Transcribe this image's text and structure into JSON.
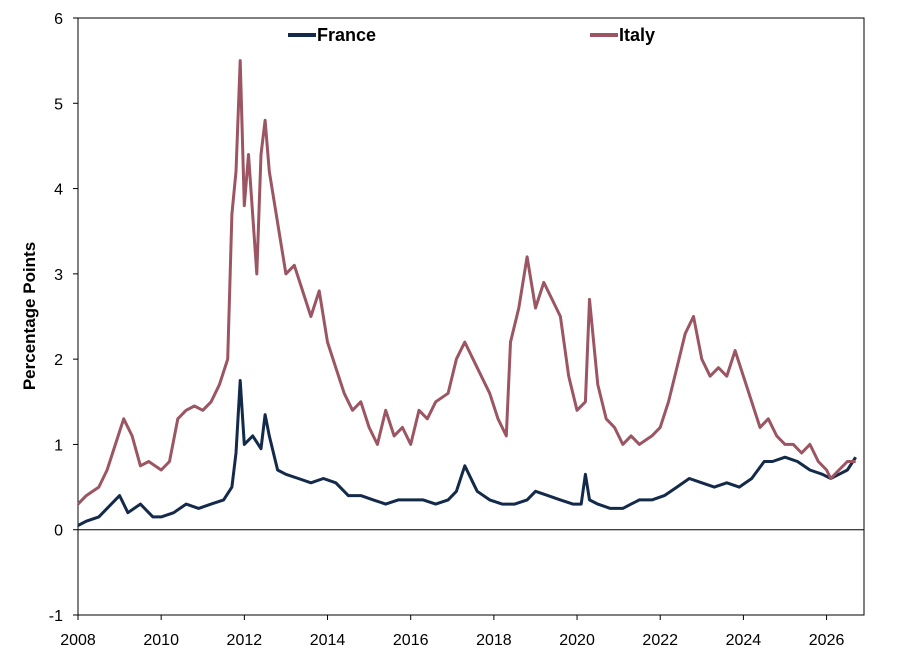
{
  "chart_data": {
    "type": "line",
    "title": "",
    "xlabel": "",
    "ylabel": "Percentage Points",
    "xlim": [
      2008,
      2026.9
    ],
    "ylim": [
      -1,
      6
    ],
    "x_ticks": [
      "2008",
      "2010",
      "2012",
      "2014",
      "2016",
      "2018",
      "2020",
      "2022",
      "2024",
      "2026"
    ],
    "y_ticks": [
      "-1",
      "0",
      "1",
      "2",
      "3",
      "4",
      "5",
      "6"
    ],
    "grid": false,
    "legend_position": "top",
    "series": [
      {
        "name": "France",
        "color": "#142a4a",
        "x": [
          2008.0,
          2008.2,
          2008.5,
          2008.8,
          2009.0,
          2009.2,
          2009.5,
          2009.8,
          2010.0,
          2010.3,
          2010.6,
          2010.9,
          2011.2,
          2011.5,
          2011.7,
          2011.8,
          2011.9,
          2012.0,
          2012.2,
          2012.4,
          2012.5,
          2012.6,
          2012.8,
          2013.0,
          2013.3,
          2013.6,
          2013.9,
          2014.2,
          2014.5,
          2014.8,
          2015.1,
          2015.4,
          2015.7,
          2016.0,
          2016.3,
          2016.6,
          2016.9,
          2017.1,
          2017.3,
          2017.6,
          2017.9,
          2018.2,
          2018.5,
          2018.8,
          2019.0,
          2019.3,
          2019.6,
          2019.9,
          2020.1,
          2020.2,
          2020.3,
          2020.5,
          2020.8,
          2021.1,
          2021.3,
          2021.5,
          2021.8,
          2022.1,
          2022.4,
          2022.7,
          2023.0,
          2023.3,
          2023.6,
          2023.9,
          2024.2,
          2024.5,
          2024.7,
          2025.0,
          2025.3,
          2025.6,
          2025.9,
          2026.1,
          2026.3,
          2026.5,
          2026.7
        ],
        "values": [
          0.05,
          0.1,
          0.15,
          0.3,
          0.4,
          0.2,
          0.3,
          0.15,
          0.15,
          0.2,
          0.3,
          0.25,
          0.3,
          0.35,
          0.5,
          0.9,
          1.75,
          1.0,
          1.1,
          0.95,
          1.35,
          1.1,
          0.7,
          0.65,
          0.6,
          0.55,
          0.6,
          0.55,
          0.4,
          0.4,
          0.35,
          0.3,
          0.35,
          0.35,
          0.35,
          0.3,
          0.35,
          0.45,
          0.75,
          0.45,
          0.35,
          0.3,
          0.3,
          0.35,
          0.45,
          0.4,
          0.35,
          0.3,
          0.3,
          0.65,
          0.35,
          0.3,
          0.25,
          0.25,
          0.3,
          0.35,
          0.35,
          0.4,
          0.5,
          0.6,
          0.55,
          0.5,
          0.55,
          0.5,
          0.6,
          0.8,
          0.8,
          0.85,
          0.8,
          0.7,
          0.65,
          0.6,
          0.65,
          0.7,
          0.85
        ]
      },
      {
        "name": "Italy",
        "color": "#9b5563",
        "x": [
          2008.0,
          2008.2,
          2008.5,
          2008.7,
          2008.9,
          2009.1,
          2009.3,
          2009.5,
          2009.7,
          2010.0,
          2010.2,
          2010.4,
          2010.6,
          2010.8,
          2011.0,
          2011.2,
          2011.4,
          2011.6,
          2011.7,
          2011.8,
          2011.9,
          2012.0,
          2012.1,
          2012.3,
          2012.4,
          2012.5,
          2012.6,
          2012.8,
          2013.0,
          2013.2,
          2013.4,
          2013.6,
          2013.8,
          2014.0,
          2014.2,
          2014.4,
          2014.6,
          2014.8,
          2015.0,
          2015.2,
          2015.4,
          2015.6,
          2015.8,
          2016.0,
          2016.2,
          2016.4,
          2016.6,
          2016.9,
          2017.1,
          2017.3,
          2017.6,
          2017.9,
          2018.1,
          2018.3,
          2018.4,
          2018.6,
          2018.8,
          2019.0,
          2019.2,
          2019.4,
          2019.6,
          2019.8,
          2020.0,
          2020.2,
          2020.3,
          2020.5,
          2020.7,
          2020.9,
          2021.1,
          2021.3,
          2021.5,
          2021.8,
          2022.0,
          2022.2,
          2022.4,
          2022.6,
          2022.8,
          2023.0,
          2023.2,
          2023.4,
          2023.6,
          2023.8,
          2024.0,
          2024.2,
          2024.4,
          2024.6,
          2024.8,
          2025.0,
          2025.2,
          2025.4,
          2025.6,
          2025.8,
          2026.0,
          2026.1,
          2026.3,
          2026.5,
          2026.7
        ],
        "values": [
          0.3,
          0.4,
          0.5,
          0.7,
          1.0,
          1.3,
          1.1,
          0.75,
          0.8,
          0.7,
          0.8,
          1.3,
          1.4,
          1.45,
          1.4,
          1.5,
          1.7,
          2.0,
          3.7,
          4.2,
          5.5,
          3.8,
          4.4,
          3.0,
          4.4,
          4.8,
          4.2,
          3.6,
          3.0,
          3.1,
          2.8,
          2.5,
          2.8,
          2.2,
          1.9,
          1.6,
          1.4,
          1.5,
          1.2,
          1.0,
          1.4,
          1.1,
          1.2,
          1.0,
          1.4,
          1.3,
          1.5,
          1.6,
          2.0,
          2.2,
          1.9,
          1.6,
          1.3,
          1.1,
          2.2,
          2.6,
          3.2,
          2.6,
          2.9,
          2.7,
          2.5,
          1.8,
          1.4,
          1.5,
          2.7,
          1.7,
          1.3,
          1.2,
          1.0,
          1.1,
          1.0,
          1.1,
          1.2,
          1.5,
          1.9,
          2.3,
          2.5,
          2.0,
          1.8,
          1.9,
          1.8,
          2.1,
          1.8,
          1.5,
          1.2,
          1.3,
          1.1,
          1.0,
          1.0,
          0.9,
          1.0,
          0.8,
          0.7,
          0.6,
          0.7,
          0.8,
          0.8
        ]
      }
    ]
  }
}
